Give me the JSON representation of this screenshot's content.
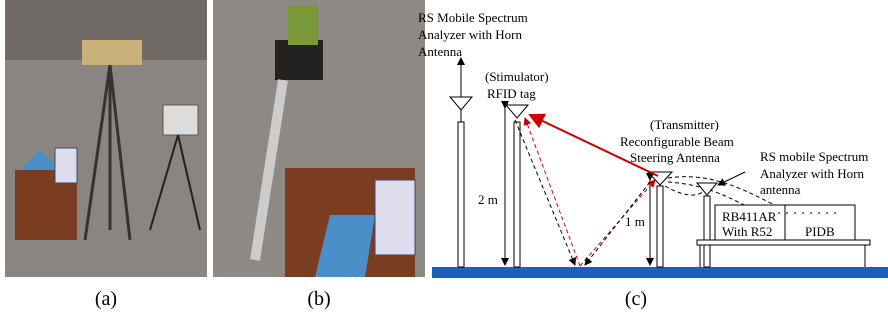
{
  "panels": [
    {
      "caption": "(a)"
    },
    {
      "caption": "(b)"
    },
    {
      "caption": "(c)"
    }
  ],
  "diagram": {
    "left_analyzer": [
      "RS Mobile Spectrum",
      "Analyzer with Horn",
      "Antenna"
    ],
    "stimulator": [
      "(Stimulator)",
      "RFID tag"
    ],
    "transmitter": [
      "(Transmitter)",
      "Reconfigurable Beam",
      "Steering Antenna"
    ],
    "right_analyzer": [
      "RS mobile Spectrum",
      "Analyzer with Horn",
      "antenna"
    ],
    "height_stimulator": "2 m",
    "height_transmitter": "1 m",
    "router_box": [
      "RB411AR",
      "With R52"
    ],
    "pidb_box": "PIDB"
  }
}
